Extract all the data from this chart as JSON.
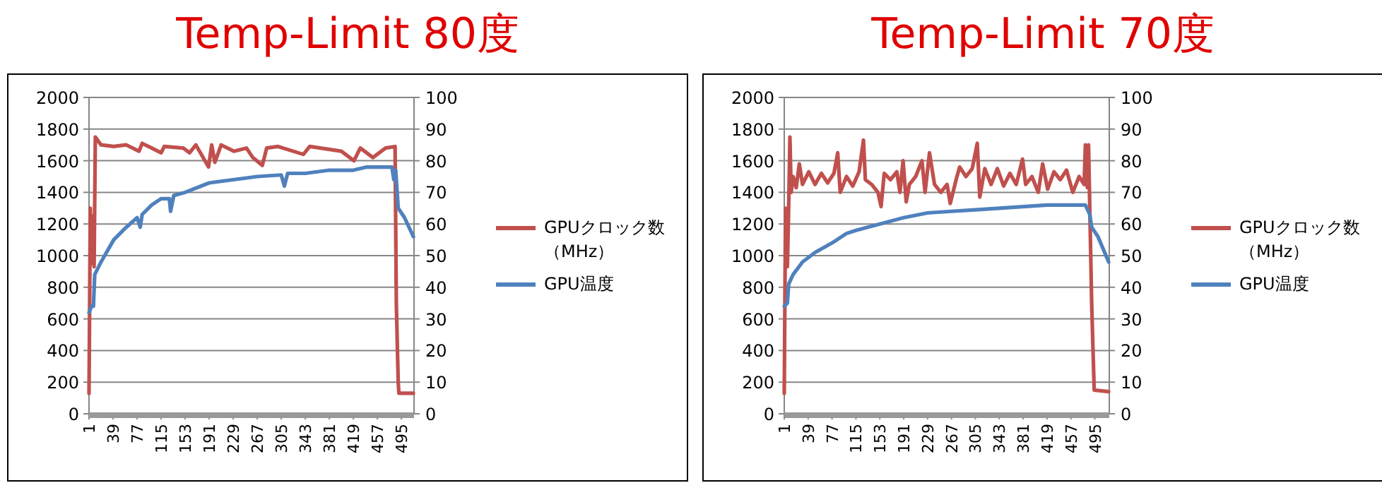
{
  "chart_data": [
    {
      "type": "line",
      "title": "Temp-Limit 80度",
      "xlim": [
        1,
        515
      ],
      "xticks": [
        1,
        39,
        77,
        115,
        153,
        191,
        229,
        267,
        305,
        343,
        381,
        419,
        457,
        495
      ],
      "ylim": [
        0,
        2000
      ],
      "yticks": [
        0,
        200,
        400,
        600,
        800,
        1000,
        1200,
        1400,
        1600,
        1800,
        2000
      ],
      "y2lim": [
        0,
        100
      ],
      "y2ticks": [
        0,
        10,
        20,
        30,
        40,
        50,
        60,
        70,
        80,
        90,
        100
      ],
      "grid": "y",
      "legend": "right",
      "line_style": "solid",
      "series": [
        {
          "name": "GPUクロック数（MHz）",
          "color": "#c0504d",
          "x": [
            1,
            3,
            5,
            7,
            9,
            11,
            20,
            40,
            60,
            80,
            85,
            100,
            115,
            120,
            150,
            160,
            170,
            190,
            195,
            200,
            210,
            230,
            250,
            260,
            275,
            282,
            300,
            340,
            350,
            400,
            420,
            430,
            450,
            470,
            485,
            487,
            490,
            491,
            514
          ],
          "values": [
            130,
            1300,
            950,
            1250,
            930,
            1750,
            1700,
            1690,
            1700,
            1660,
            1710,
            1680,
            1650,
            1690,
            1680,
            1650,
            1700,
            1560,
            1700,
            1590,
            1700,
            1660,
            1680,
            1620,
            1570,
            1680,
            1690,
            1640,
            1690,
            1660,
            1600,
            1680,
            1620,
            1680,
            1690,
            700,
            200,
            130,
            130
          ]
        },
        {
          "name": "GPU温度",
          "color": "#4f81bd",
          "axis": "y2",
          "x": [
            1,
            5,
            8,
            10,
            20,
            40,
            60,
            77,
            82,
            85,
            100,
            115,
            128,
            130,
            135,
            153,
            191,
            229,
            267,
            305,
            310,
            315,
            343,
            381,
            419,
            440,
            480,
            483,
            486,
            490,
            500,
            514
          ],
          "values": [
            32,
            34,
            34,
            44,
            48,
            55,
            59,
            62,
            59,
            63,
            66,
            68,
            68,
            64,
            69,
            70,
            73,
            74,
            75,
            75.5,
            72,
            76,
            76,
            77,
            77,
            78,
            78,
            74,
            77,
            65,
            62,
            56
          ]
        }
      ]
    },
    {
      "type": "line",
      "title": "Temp-Limit 70度",
      "xlim": [
        1,
        518
      ],
      "xticks": [
        1,
        39,
        77,
        115,
        153,
        191,
        229,
        267,
        305,
        343,
        381,
        419,
        457,
        495
      ],
      "ylim": [
        0,
        2000
      ],
      "yticks": [
        0,
        200,
        400,
        600,
        800,
        1000,
        1200,
        1400,
        1600,
        1800,
        2000
      ],
      "y2lim": [
        0,
        100
      ],
      "y2ticks": [
        0,
        10,
        20,
        30,
        40,
        50,
        60,
        70,
        80,
        90,
        100
      ],
      "grid": "y",
      "legend": "right",
      "line_style": "solid",
      "series": [
        {
          "name": "GPUクロック数（MHz）",
          "color": "#c0504d",
          "x": [
            1,
            3,
            6,
            8,
            10,
            12,
            15,
            20,
            25,
            30,
            40,
            50,
            60,
            70,
            80,
            86,
            90,
            100,
            110,
            120,
            127,
            130,
            140,
            150,
            155,
            160,
            170,
            180,
            185,
            190,
            195,
            200,
            210,
            220,
            225,
            232,
            240,
            250,
            260,
            265,
            275,
            280,
            290,
            300,
            308,
            312,
            320,
            330,
            340,
            350,
            360,
            370,
            380,
            385,
            395,
            405,
            412,
            420,
            430,
            440,
            450,
            460,
            470,
            478,
            480,
            483,
            485,
            490,
            494,
            517
          ],
          "values": [
            130,
            1300,
            930,
            1300,
            1750,
            1400,
            1500,
            1430,
            1580,
            1450,
            1530,
            1450,
            1520,
            1460,
            1520,
            1650,
            1400,
            1500,
            1440,
            1530,
            1730,
            1480,
            1450,
            1400,
            1310,
            1520,
            1480,
            1530,
            1400,
            1600,
            1340,
            1450,
            1500,
            1600,
            1400,
            1650,
            1450,
            1400,
            1450,
            1330,
            1490,
            1560,
            1500,
            1550,
            1710,
            1370,
            1550,
            1450,
            1550,
            1440,
            1520,
            1450,
            1610,
            1450,
            1500,
            1400,
            1580,
            1420,
            1530,
            1480,
            1540,
            1400,
            1500,
            1450,
            1700,
            1430,
            1700,
            700,
            150,
            140
          ]
        },
        {
          "name": "GPU温度",
          "color": "#4f81bd",
          "axis": "y2",
          "x": [
            1,
            6,
            8,
            15,
            30,
            50,
            77,
            100,
            115,
            153,
            191,
            229,
            267,
            305,
            343,
            381,
            419,
            480,
            487,
            490,
            500,
            517
          ],
          "values": [
            34,
            35,
            41,
            44,
            48,
            51,
            54,
            57,
            58,
            60,
            62,
            63.5,
            64,
            64.5,
            65,
            65.5,
            66,
            66,
            63,
            59,
            56,
            48
          ]
        }
      ]
    }
  ]
}
